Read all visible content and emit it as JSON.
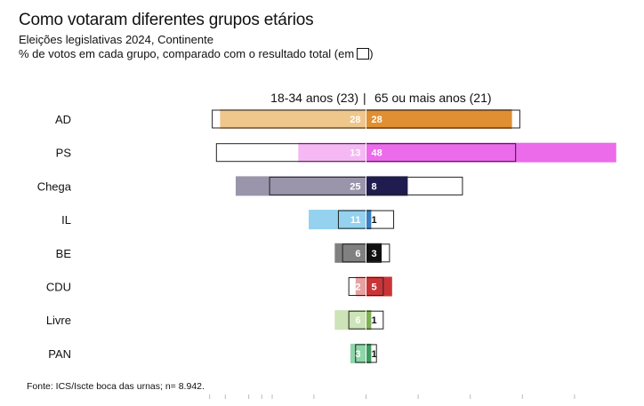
{
  "header": {
    "title": "Como votaram diferentes grupos etários",
    "subtitle": "Eleições legislativas 2024, Continente",
    "subtitle2": "% de votos em cada grupo, comparado com o resultado total (em"
  },
  "footer": {
    "source": "Fonte: ICS/Iscte boca das urnas; n= 8.942."
  },
  "chart_data": {
    "type": "bar",
    "subtype": "diverging-butterfly",
    "left_group": "18-34 anos (23)",
    "right_group": "65 ou mais anos (21)",
    "separator": "|",
    "categories": [
      "AD",
      "PS",
      "Chega",
      "IL",
      "BE",
      "CDU",
      "Livre",
      "PAN"
    ],
    "series": [
      {
        "name": "18-34 anos (23)",
        "values": [
          28,
          13,
          25,
          11,
          6,
          2,
          6,
          3
        ]
      },
      {
        "name": "65 ou mais anos (21)",
        "values": [
          28,
          48,
          8,
          1,
          3,
          5,
          1,
          1
        ]
      }
    ],
    "total_reference": [
      29.5,
      28.7,
      18.5,
      5.3,
      4.5,
      3.3,
      3.3,
      2.0
    ],
    "colors": {
      "left": [
        "#efc68c",
        "#f5b8f4",
        "#9a95ab",
        "#94d2ef",
        "#808080",
        "#e7a1a1",
        "#cde3b8",
        "#8ed6a9"
      ],
      "right": [
        "#e08f32",
        "#eb6bea",
        "#1f1c4f",
        "#3a7fc2",
        "#111111",
        "#c93537",
        "#7faf56",
        "#3e9a5d"
      ],
      "right_text": [
        "#ffffff",
        "#ffffff",
        "#ffffff",
        "#111111",
        "#ffffff",
        "#ffffff",
        "#111111",
        "#111111"
      ]
    },
    "grid": false
  }
}
